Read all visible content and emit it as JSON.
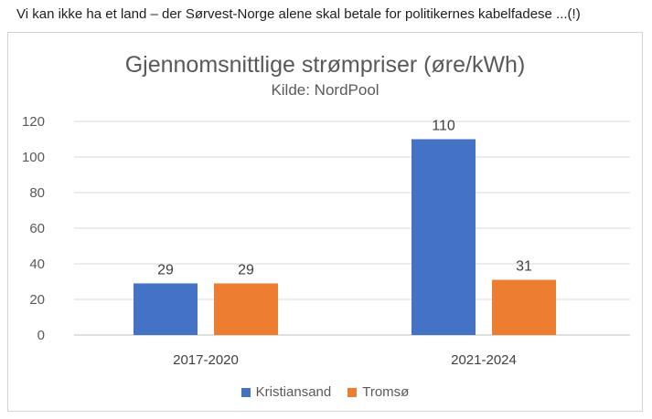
{
  "post": {
    "text": "Vi kan ikke ha et land – der Sørvest-Norge alene skal betale for politikernes kabelfadese ...(!)"
  },
  "chart_data": {
    "type": "bar",
    "title": "Gjennomsnittlige strømpriser (øre/kWh)",
    "subtitle": "Kilde: NordPool",
    "categories": [
      "2017-2020",
      "2021-2024"
    ],
    "series": [
      {
        "name": "Kristiansand",
        "color": "#4472C4",
        "values": [
          29,
          110
        ]
      },
      {
        "name": "Tromsø",
        "color": "#ED7D31",
        "values": [
          29,
          31
        ]
      }
    ],
    "ylim": [
      0,
      120
    ],
    "yticks": [
      0,
      20,
      40,
      60,
      80,
      100,
      120
    ],
    "grid": true,
    "legend": "bottom",
    "data_labels": true
  }
}
